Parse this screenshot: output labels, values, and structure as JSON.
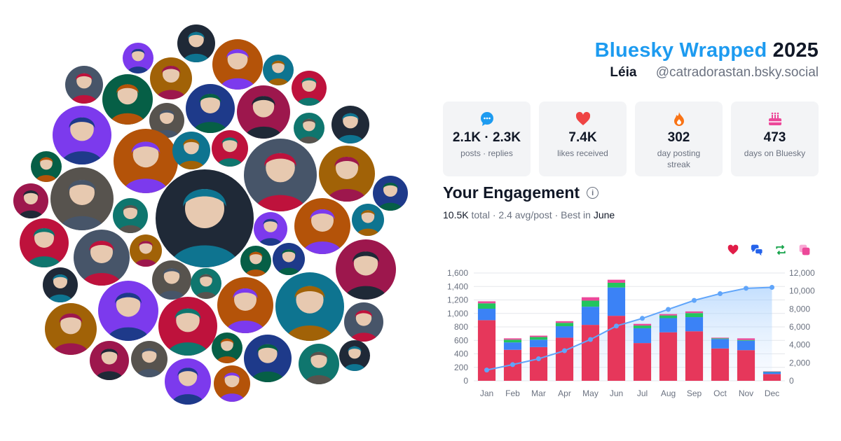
{
  "header": {
    "brand": "Bluesky Wrapped",
    "year": "2025",
    "display_name": "Léia",
    "handle": "@catradorastan.bsky.social"
  },
  "stats": [
    {
      "icon": "chat-bubble-icon",
      "value": "2.1K · 2.3K",
      "label": "posts · replies",
      "color": "#1d9bf0"
    },
    {
      "icon": "heart-icon",
      "value": "7.4K",
      "label": "likes received",
      "color": "#ef4444"
    },
    {
      "icon": "flame-icon",
      "value": "302",
      "label": "day posting streak",
      "color": "#f97316"
    },
    {
      "icon": "cake-icon",
      "value": "473",
      "label": "days on Bluesky",
      "color": "#ec4899"
    }
  ],
  "engagement": {
    "title": "Your Engagement",
    "info_icon": "info-icon",
    "total_value": "10.5K",
    "total_label": "total",
    "avg": "2.4 avg/post",
    "best_label": "Best in",
    "best_month": "June",
    "sep": "·"
  },
  "legend": [
    {
      "icon": "heart-icon",
      "color": "#e11d48"
    },
    {
      "icon": "reply-icon",
      "color": "#2563eb"
    },
    {
      "icon": "repost-icon",
      "color": "#16a34a"
    },
    {
      "icon": "quote-icon",
      "color": "#ec4899"
    }
  ],
  "chart_data": {
    "type": "bar",
    "stacked": true,
    "categories": [
      "Jan",
      "Feb",
      "Mar",
      "Apr",
      "May",
      "Jun",
      "Jul",
      "Aug",
      "Sep",
      "Oct",
      "Nov",
      "Dec"
    ],
    "series": [
      {
        "color": "#e6375b",
        "values": [
          900,
          460,
          500,
          640,
          830,
          965,
          560,
          720,
          735,
          480,
          455,
          100
        ]
      },
      {
        "color": "#3b82f6",
        "values": [
          170,
          110,
          110,
          170,
          270,
          420,
          220,
          210,
          210,
          140,
          140,
          30
        ]
      },
      {
        "color": "#22c55e",
        "values": [
          80,
          40,
          40,
          50,
          90,
          70,
          40,
          40,
          60,
          10,
          10,
          5
        ]
      },
      {
        "color": "#ec4899",
        "values": [
          30,
          20,
          20,
          25,
          50,
          45,
          25,
          20,
          25,
          10,
          25,
          5
        ]
      }
    ],
    "cumulative": {
      "color": "#60a5fa",
      "values": [
        1200,
        1800,
        2450,
        3350,
        4600,
        6100,
        6950,
        7950,
        8950,
        9700,
        10300,
        10400
      ]
    },
    "yticks_left": [
      "0",
      "200",
      "400",
      "600",
      "800",
      "1,000",
      "1,200",
      "1,400",
      "1,600"
    ],
    "yticks_right": [
      "0",
      "2,000",
      "4,000",
      "6,000",
      "8,000",
      "10,000",
      "12,000"
    ],
    "ylim_left": [
      0,
      1600
    ],
    "ylim_right": [
      0,
      12000
    ],
    "grid": true
  },
  "avatar_palette": [
    "#1f2937",
    "#7c3aed",
    "#b45309",
    "#0e7490",
    "#be123c",
    "#475569",
    "#a16207",
    "#065f46",
    "#1e3a8a",
    "#9d174d",
    "#57534e",
    "#0f766e"
  ]
}
